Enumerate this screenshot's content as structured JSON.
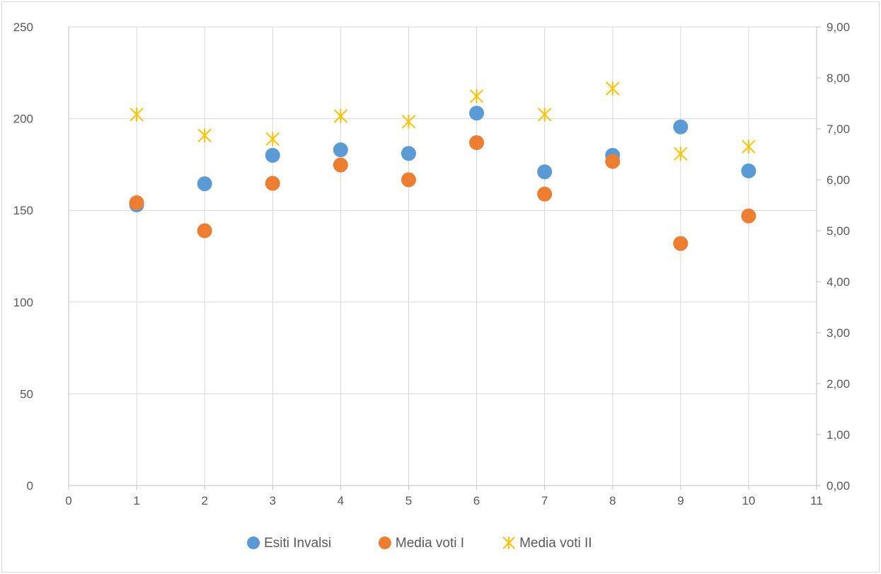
{
  "chart_data": {
    "type": "scatter",
    "title": "",
    "xlabel": "",
    "ylabel": "",
    "xlim": [
      0,
      11
    ],
    "ylim": [
      0,
      250
    ],
    "y2lim": [
      0,
      9
    ],
    "x_ticks": [
      "0",
      "1",
      "2",
      "3",
      "4",
      "5",
      "6",
      "7",
      "8",
      "9",
      "10",
      "11"
    ],
    "y_ticks": [
      "0",
      "50",
      "100",
      "150",
      "200",
      "250"
    ],
    "y2_ticks": [
      "0,00",
      "1,00",
      "2,00",
      "3,00",
      "4,00",
      "5,00",
      "6,00",
      "7,00",
      "8,00",
      "9,00"
    ],
    "grid": true,
    "legend_position": "bottom",
    "series": [
      {
        "name": "Esiti Invalsi",
        "axis": "left",
        "marker": "circle",
        "color": "#5B9BD5",
        "x": [
          1,
          2,
          3,
          4,
          5,
          6,
          7,
          8,
          9,
          10
        ],
        "y": [
          153,
          164.5,
          180,
          183,
          181,
          203,
          171,
          180,
          195.5,
          171.5
        ]
      },
      {
        "name": "Media voti I",
        "axis": "right",
        "marker": "circle",
        "color": "#ED7D31",
        "x": [
          1,
          2,
          3,
          4,
          5,
          6,
          7,
          8,
          9,
          10
        ],
        "y": [
          5.55,
          5.0,
          5.93,
          6.29,
          6.0,
          6.73,
          5.72,
          6.36,
          4.75,
          5.29
        ]
      },
      {
        "name": "Media voti II",
        "axis": "right",
        "marker": "star",
        "color": "#FFC000",
        "x": [
          1,
          2,
          3,
          4,
          5,
          6,
          7,
          8,
          9,
          10
        ],
        "y": [
          7.28,
          6.87,
          6.8,
          7.25,
          7.14,
          7.64,
          7.28,
          7.79,
          6.51,
          6.65
        ]
      }
    ]
  }
}
